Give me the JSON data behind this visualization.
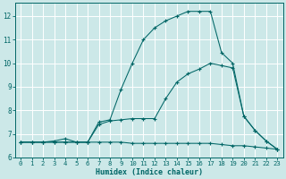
{
  "xlabel": "Humidex (Indice chaleur)",
  "bg_color": "#cce8e8",
  "grid_color": "#b0d8d8",
  "line_color": "#006666",
  "xlim": [
    -0.5,
    23.5
  ],
  "ylim": [
    6.0,
    12.55
  ],
  "xticks": [
    0,
    1,
    2,
    3,
    4,
    5,
    6,
    7,
    8,
    9,
    10,
    11,
    12,
    13,
    14,
    15,
    16,
    17,
    18,
    19,
    20,
    21,
    22,
    23
  ],
  "yticks": [
    6,
    7,
    8,
    9,
    10,
    11,
    12
  ],
  "line1_y": [
    6.65,
    6.65,
    6.65,
    6.65,
    6.65,
    6.65,
    6.65,
    6.65,
    6.65,
    6.65,
    6.6,
    6.6,
    6.6,
    6.6,
    6.6,
    6.6,
    6.6,
    6.6,
    6.55,
    6.5,
    6.5,
    6.45,
    6.4,
    6.35
  ],
  "line2_y": [
    6.65,
    6.65,
    6.65,
    6.65,
    6.65,
    6.65,
    6.65,
    7.5,
    7.6,
    8.9,
    10.0,
    11.0,
    11.5,
    11.8,
    12.0,
    12.2,
    12.2,
    12.2,
    10.45,
    10.0,
    7.75,
    7.15,
    6.7,
    6.35
  ],
  "line3_y": [
    6.65,
    6.65,
    6.65,
    6.7,
    6.8,
    6.65,
    6.65,
    7.4,
    7.55,
    7.6,
    7.65,
    7.65,
    7.65,
    8.5,
    9.2,
    9.55,
    9.75,
    10.0,
    9.9,
    9.8,
    7.75,
    7.15,
    6.7,
    6.35
  ]
}
